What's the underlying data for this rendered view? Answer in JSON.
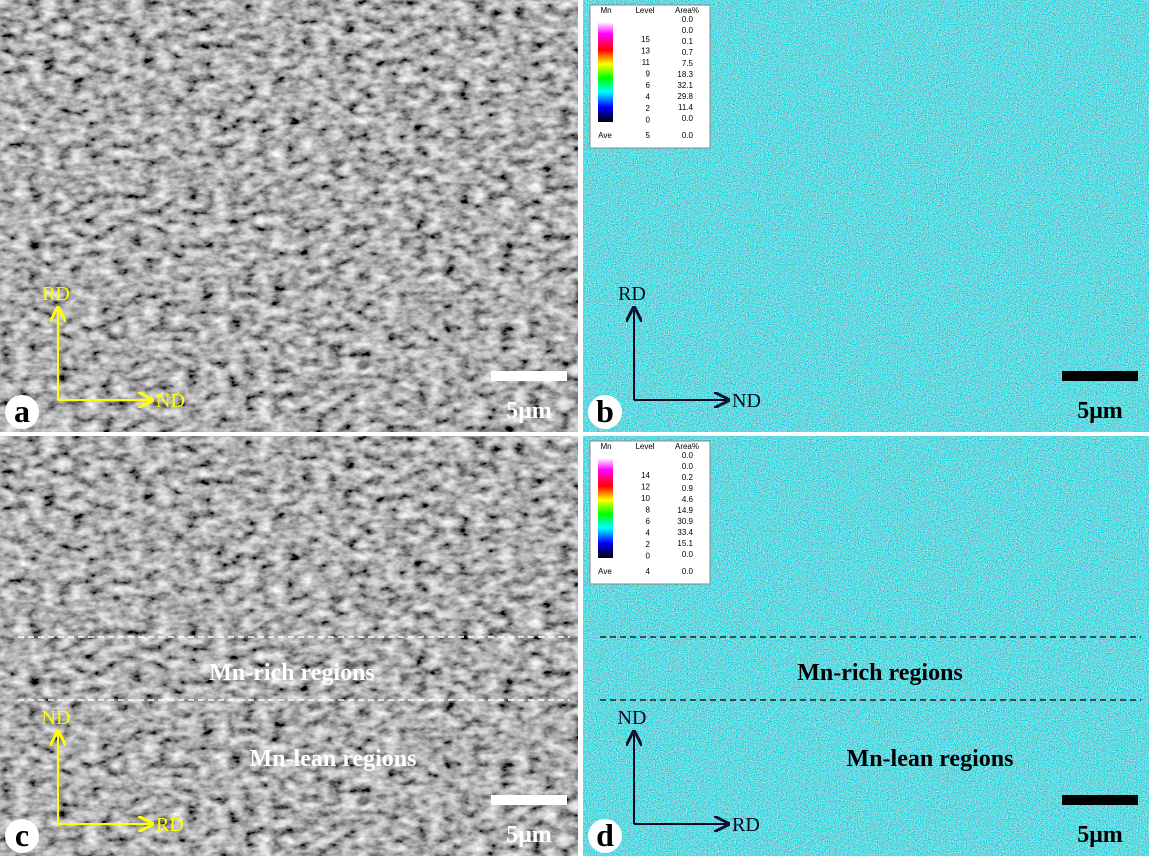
{
  "panels": [
    {
      "label": "a",
      "axis_vertical": "RD",
      "axis_horizontal": "ND",
      "scale_bar": "5μm"
    },
    {
      "label": "b",
      "axis_vertical": "RD",
      "axis_horizontal": "ND",
      "scale_bar": "5μm",
      "legend": {
        "element": "Mn",
        "level_header": "Level",
        "area_header": "Area%",
        "levels": [
          "15",
          "13",
          "11",
          "9",
          "6",
          "4",
          "2",
          "0"
        ],
        "areas": [
          "0.0",
          "0.0",
          "0.1",
          "0.7",
          "7.5",
          "18.3",
          "32.1",
          "29.8",
          "11.4",
          "0.0"
        ],
        "ave_label": "Ave",
        "ave_level": "5",
        "ave_area": "0.0"
      }
    },
    {
      "label": "c",
      "axis_vertical": "ND",
      "axis_horizontal": "RD",
      "scale_bar": "5μm",
      "regions": [
        "Mn-rich regions",
        "Mn-lean regions"
      ]
    },
    {
      "label": "d",
      "axis_vertical": "ND",
      "axis_horizontal": "RD",
      "scale_bar": "5μm",
      "legend": {
        "element": "Mn",
        "level_header": "Level",
        "area_header": "Area%",
        "levels": [
          "14",
          "12",
          "10",
          "8",
          "6",
          "4",
          "2",
          "0"
        ],
        "areas": [
          "0.0",
          "0.0",
          "0.2",
          "0.9",
          "4.6",
          "14.9",
          "30.9",
          "33.4",
          "15.1",
          "0.0"
        ],
        "ave_label": "Ave",
        "ave_level": "4",
        "ave_area": "0.0"
      },
      "regions": [
        "Mn-rich regions",
        "Mn-lean regions"
      ]
    }
  ]
}
